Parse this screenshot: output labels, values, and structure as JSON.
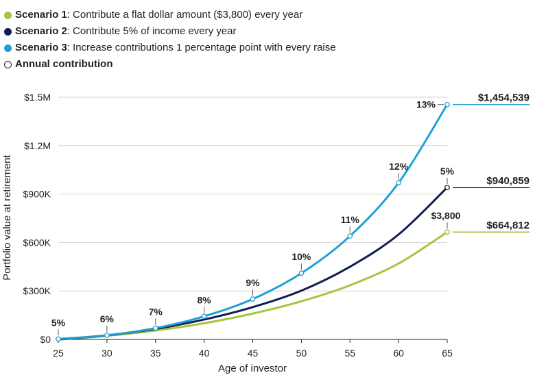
{
  "legend": [
    {
      "name": "Scenario 1",
      "suffix": ":",
      "desc": "Contribute a flat dollar amount ($3,800) every year",
      "color": "#a9c23f",
      "style": "filled"
    },
    {
      "name": "Scenario 2",
      "suffix": ":",
      "desc": "Contribute 5% of income every year",
      "color": "#0e1f4d",
      "style": "filled"
    },
    {
      "name": "Scenario 3",
      "suffix": ":",
      "desc": "Increase contributions 1 percentage point with every raise",
      "color": "#1ea0d6",
      "style": "filled"
    },
    {
      "name": "Annual contribution",
      "suffix": "",
      "desc": "",
      "color": "#222222",
      "style": "hollow"
    }
  ],
  "chart_data": {
    "type": "line",
    "xlabel": "Age of investor",
    "ylabel": "Portfolio value at retirement",
    "xlim": [
      25,
      65
    ],
    "ylim": [
      0,
      1500000
    ],
    "x_ticks": [
      25,
      30,
      35,
      40,
      45,
      50,
      55,
      60,
      65
    ],
    "y_ticks": [
      0,
      300000,
      600000,
      900000,
      1200000,
      1500000
    ],
    "y_tick_labels": [
      "$0",
      "$300K",
      "$600K",
      "$900K",
      "$1.2M",
      "$1.5M"
    ],
    "grid": "horizontal",
    "series": [
      {
        "name": "Scenario 1",
        "color": "#a9c23f",
        "x": [
          25,
          30,
          35,
          40,
          45,
          50,
          55,
          60,
          65
        ],
        "y": [
          0,
          22000,
          55000,
          100000,
          160000,
          236000,
          335000,
          470000,
          664812
        ],
        "end_label": "$664,812",
        "markers": [
          {
            "x": 65,
            "y": 664812,
            "label": "$3,800"
          }
        ]
      },
      {
        "name": "Scenario 2",
        "color": "#0e1f4d",
        "x": [
          25,
          30,
          35,
          40,
          45,
          50,
          55,
          60,
          65
        ],
        "y": [
          0,
          25000,
          65000,
          123000,
          200000,
          302000,
          450000,
          650000,
          940859
        ],
        "end_label": "$940,859",
        "markers": [
          {
            "x": 65,
            "y": 940859,
            "label": "5%"
          }
        ]
      },
      {
        "name": "Scenario 3",
        "color": "#1ea0d6",
        "x": [
          25,
          30,
          35,
          40,
          45,
          50,
          55,
          60,
          65
        ],
        "y": [
          3000,
          26000,
          70000,
          143000,
          250000,
          410000,
          640000,
          970000,
          1454539
        ],
        "end_label": "$1,454,539",
        "markers": [
          {
            "x": 25,
            "y": 3000,
            "label": "5%"
          },
          {
            "x": 30,
            "y": 26000,
            "label": "6%"
          },
          {
            "x": 35,
            "y": 70000,
            "label": "7%"
          },
          {
            "x": 40,
            "y": 143000,
            "label": "8%"
          },
          {
            "x": 45,
            "y": 250000,
            "label": "9%"
          },
          {
            "x": 50,
            "y": 410000,
            "label": "10%"
          },
          {
            "x": 55,
            "y": 640000,
            "label": "11%"
          },
          {
            "x": 60,
            "y": 970000,
            "label": "12%"
          },
          {
            "x": 65,
            "y": 1454539,
            "label": "13%"
          }
        ]
      }
    ]
  }
}
